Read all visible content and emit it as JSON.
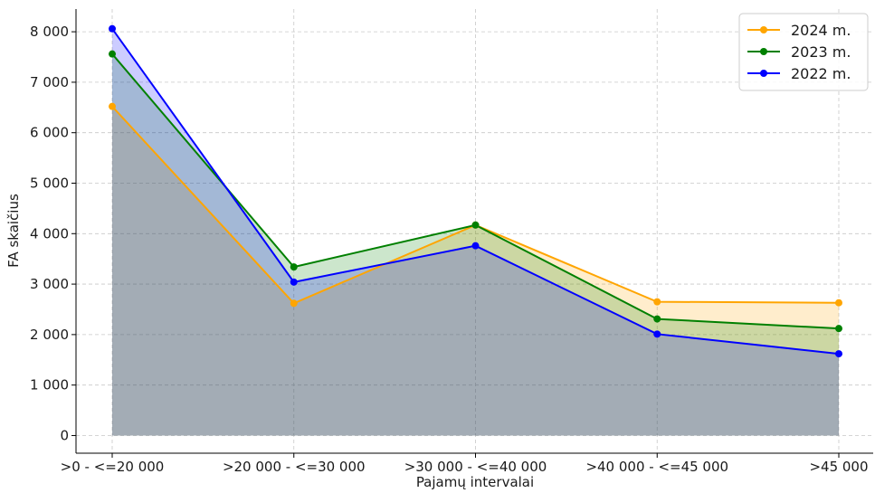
{
  "chart_data": {
    "type": "area",
    "title": "",
    "xlabel": "Pajamų intervalai",
    "ylabel": "FA skaičius",
    "categories": [
      ">0 - <=20 000",
      ">20 000 - <=30 000",
      ">30 000 - <=40 000",
      ">40 000 - <=45 000",
      ">45 000"
    ],
    "ylim": [
      -350,
      8450
    ],
    "yticks": [
      0,
      1000,
      2000,
      3000,
      4000,
      5000,
      6000,
      7000,
      8000
    ],
    "ytick_labels": [
      "0",
      "1 000",
      "2 000",
      "3 000",
      "4 000",
      "5 000",
      "6 000",
      "7 000",
      "8 000"
    ],
    "grid": true,
    "legend_position": "top-right",
    "series": [
      {
        "name": "2024 m.",
        "color": "#FFA500",
        "values": [
          6520,
          2620,
          4170,
          2650,
          2630
        ]
      },
      {
        "name": "2023 m.",
        "color": "#008000",
        "values": [
          7560,
          3340,
          4170,
          2310,
          2120
        ]
      },
      {
        "name": "2022 m.",
        "color": "#0000FF",
        "values": [
          8060,
          3040,
          3760,
          2010,
          1620
        ]
      }
    ]
  }
}
